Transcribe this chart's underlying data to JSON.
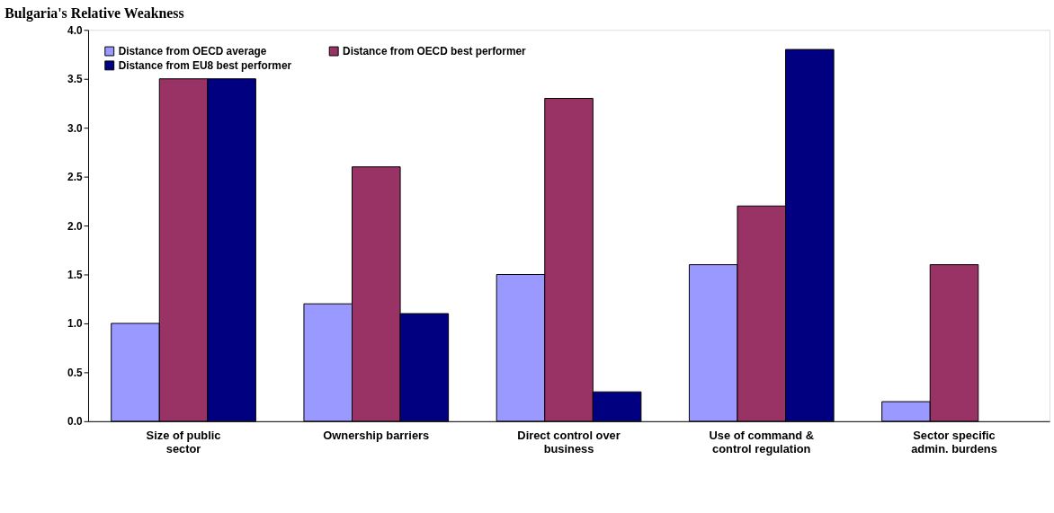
{
  "chart_data": {
    "type": "bar",
    "title": "Bulgaria's Relative Weakness",
    "categories": [
      "Size of public sector",
      "Ownership barriers",
      "Direct control over business",
      "Use of command & control regulation",
      "Sector specific admin. burdens"
    ],
    "series": [
      {
        "name": "Distance from OECD average",
        "color": "#9999ff",
        "values": [
          1.0,
          1.2,
          1.5,
          1.6,
          0.2
        ]
      },
      {
        "name": "Distance from OECD best performer",
        "color": "#993366",
        "values": [
          3.5,
          2.6,
          3.3,
          2.2,
          1.6
        ]
      },
      {
        "name": "Distance from EU8 best performer",
        "color": "#000080",
        "values": [
          3.5,
          1.1,
          0.3,
          3.8,
          null
        ]
      }
    ],
    "ylim": [
      0,
      4
    ],
    "yticks": [
      {
        "value": 0,
        "label": "0.0"
      },
      0.5,
      {
        "value": 1,
        "label": "1.0"
      },
      1.5,
      {
        "value": 2,
        "label": "2.0"
      },
      2.5,
      {
        "value": 3,
        "label": "3.0"
      },
      3.5,
      {
        "value": 4,
        "label": "4.0"
      }
    ],
    "grid": false,
    "legend": "top left"
  }
}
